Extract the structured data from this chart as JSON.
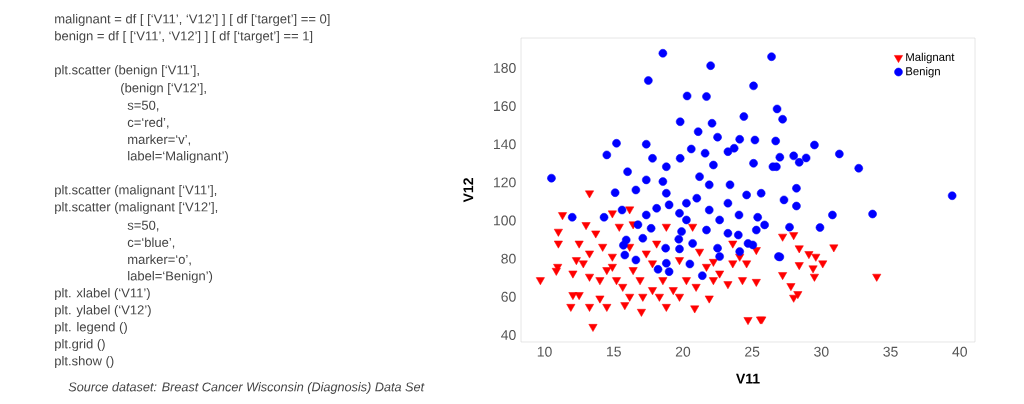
{
  "chart_data": {
    "type": "scatter",
    "xlabel": "V11",
    "ylabel": "V12",
    "xlim": [
      8.3,
      41.1
    ],
    "ylim": [
      36.3,
      195.7
    ],
    "xticks": [
      10,
      15,
      20,
      25,
      30,
      35,
      40
    ],
    "yticks": [
      40,
      60,
      80,
      100,
      120,
      140,
      160,
      180
    ],
    "grid": false,
    "legend": "top right",
    "annotations": [
      "malignant = df [ [‘V11’, ‘V12’] ] [ df [‘target’] == 0]",
      "benign =  df [ [‘V11’, ‘V12’] ] [ df [‘target’] == 1]",
      "plt.scatter (benign [‘V11’],",
      "(benign [‘V12’],",
      "s=50,",
      "c=‘red’,",
      "marker=‘v’,",
      "label=‘Malignant’)",
      "plt.scatter (malignant [‘V11’],",
      "plt.scatter (malignant [‘V12’],",
      "s=50,",
      "c=‘blue’,",
      "marker=‘o’,",
      "label=‘Benign’)",
      "plt. xlabel (‘V11’)",
      "plt. ylabel (‘V12’)",
      "plt. legend ()",
      "plt.grid ()",
      "plt.show ()",
      "Source dataset: Breast Cancer Wisconsin (Diagnosis) Data Set"
    ],
    "series": [
      {
        "name": "Malignant",
        "color": "#ff0000",
        "marker": "triangle",
        "x": [
          27.2,
          28.0,
          28.4,
          29.1,
          29.6,
          30.1,
          30.9,
          28.4,
          29.4,
          29.5,
          27.2,
          27.8,
          28.3,
          28.0,
          34.0,
          25.7,
          9.7,
          13.5,
          13.25,
          11.3,
          11.0,
          11.0,
          10.95,
          10.85,
          11.9,
          12.05,
          12.5,
          12.3,
          13.25,
          13.0,
          13.7,
          14.5,
          14.0,
          14.9,
          16.15,
          15.4,
          17.0,
          15.8,
          17.8,
          18.8,
          19.75,
          20.85,
          21.9,
          23.25,
          24.3,
          25.3,
          24.7,
          25.6,
          25.3,
          24.6,
          23.6,
          22.2,
          21.2,
          12.5,
          13.25,
          14.2,
          14.9,
          13.25,
          14.0,
          14.9,
          15.2,
          15.65,
          16.4,
          16.9,
          17.35,
          17.8,
          18.1,
          18.55,
          19.3,
          19.75,
          20.25,
          20.95,
          21.7,
          22.65,
          23.6,
          16.15,
          16.4,
          18.8,
          20.7,
          14.5,
          12.05,
          12.8,
          17.1,
          16.15,
          18.3,
          22.2,
          24.1
        ],
        "values": [
          91.6,
          92.4,
          85.5,
          82.5,
          81.1,
          77.6,
          86.0,
          76.7,
          75.0,
          70.6,
          71.5,
          65.7,
          61.5,
          59.6,
          70.6,
          48.2,
          68.8,
          44.3,
          114.3,
          102.9,
          94.2,
          88.0,
          75.8,
          73.7,
          54.8,
          61.0,
          61.0,
          79.3,
          54.8,
          97.7,
          93.3,
          54.8,
          59.2,
          103.8,
          105.9,
          96.8,
          52.2,
          55.7,
          63.6,
          54.8,
          60.1,
          54.0,
          59.2,
          66.7,
          68.8,
          67.9,
          47.9,
          48.2,
          84.6,
          77.6,
          88.0,
          78.4,
          83.7,
          88.0,
          82.8,
          86.3,
          81.1,
          70.6,
          68.8,
          75.8,
          68.8,
          65.3,
          74.1,
          68.8,
          82.8,
          77.6,
          88.0,
          68.8,
          63.6,
          79.3,
          68.8,
          65.3,
          75.8,
          72.3,
          77.6,
          86.3,
          98.1,
          96.8,
          96.8,
          74.1,
          72.3,
          77.6,
          60.1,
          60.1,
          60.1,
          68.8,
          81.1
        ]
      },
      {
        "name": "Benign",
        "color": "#0000ff",
        "marker": "circle",
        "x": [
          18.55,
          17.5,
          22.0,
          26.4,
          20.3,
          21.7,
          25.1,
          19.8,
          22.1,
          24.4,
          26.8,
          15.2,
          17.35,
          14.5,
          21.1,
          22.5,
          24.1,
          25.2,
          26.7,
          10.5,
          16.0,
          20.6,
          21.6,
          19.8,
          23.25,
          23.7,
          18.8,
          22.2,
          25.1,
          17.8,
          18.55,
          21.2,
          26.75,
          27.2,
          29.5,
          31.3,
          32.7,
          27.0,
          28.0,
          28.4,
          28.9,
          26.5,
          28.2,
          39.45,
          33.7,
          30.8,
          29.9,
          27.7,
          27.0,
          28.2,
          27.3,
          25.9,
          15.1,
          12.0,
          14.3,
          15.6,
          15.9,
          15.7,
          15.8,
          16.75,
          17.1,
          16.6,
          17.7,
          17.35,
          18.1,
          18.75,
          18.8,
          18.2,
          19.0,
          19.7,
          19.75,
          20.5,
          21.4,
          20.7,
          19.9,
          20.25,
          19.75,
          19.0,
          18.8,
          20.25,
          21.0,
          21.9,
          21.7,
          22.5,
          22.65,
          22.65,
          23.25,
          23.25,
          24.05,
          24.0,
          24.1,
          24.7,
          24.6,
          25.4,
          25.3,
          25.05,
          25.65,
          21.9,
          16.6,
          17.35,
          23.4,
          26.9
        ],
        "values": [
          187.7,
          173.4,
          181.2,
          185.9,
          165.3,
          165.0,
          170.6,
          151.8,
          151.0,
          154.5,
          158.5,
          140.5,
          140.0,
          134.4,
          146.6,
          143.7,
          142.6,
          142.2,
          141.7,
          122.2,
          125.6,
          137.5,
          135.3,
          132.6,
          136.1,
          137.9,
          128.2,
          129.1,
          130.0,
          132.6,
          120.4,
          123.0,
          128.2,
          153.1,
          139.6,
          134.9,
          127.4,
          133.2,
          133.9,
          130.5,
          132.8,
          128.2,
          116.9,
          113.0,
          103.4,
          102.9,
          96.3,
          96.5,
          80.9,
          107.6,
          110.8,
          97.7,
          114.6,
          101.7,
          101.7,
          105.5,
          89.8,
          87.0,
          81.9,
          97.8,
          90.7,
          79.3,
          95.9,
          102.9,
          106.4,
          85.5,
          77.6,
          74.4,
          73.2,
          90.2,
          85.1,
          77.2,
          71.1,
          88.0,
          94.2,
          100.3,
          103.8,
          108.2,
          114.3,
          109.1,
          111.7,
          105.5,
          95.0,
          85.5,
          81.1,
          100.3,
          93.3,
          109.1,
          102.9,
          92.4,
          83.7,
          88.0,
          113.4,
          101.7,
          95.0,
          87.2,
          114.3,
          118.7,
          116.0,
          121.3,
          118.7,
          81.1
        ]
      }
    ]
  }
}
